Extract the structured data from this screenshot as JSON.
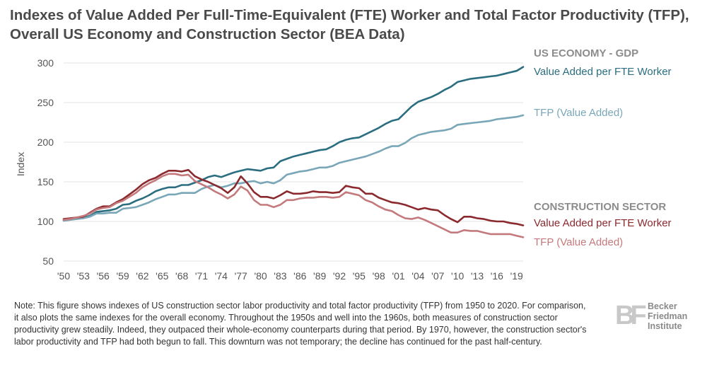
{
  "title": "Indexes of Value Added Per Full-Time-Equivalent (FTE) Worker and Total Factor Productivity (TFP), Overall US Economy and Construction Sector (BEA Data)",
  "note": "Note: This figure shows indexes of US construction sector labor productivity and total factor productivity (TFP) from 1950 to 2020. For comparison, it also plots the same indexes for the overall economy. Throughout the 1950s and well into the 1960s, both measures of construction sector productivity grew steadily. Indeed, they outpaced their whole-economy counterparts during that period. By 1970, however, the construction sector's labor productivity and TFP had both begun to fall. This downturn was not temporary; the decline has continued for the past half-century.",
  "logo": {
    "mark": "BF",
    "lines": [
      "Becker",
      "Friedman",
      "Institute"
    ]
  },
  "legend": {
    "group1": "US ECONOMY - GDP",
    "group2": "CONSTRUCTION SECTOR"
  },
  "colors": {
    "us_va": "#2b6e80",
    "us_tfp": "#7aa7b8",
    "con_va": "#8b2a2e",
    "con_tfp": "#c47a7c",
    "group_label": "#8c8c8c",
    "axis_text": "#555555",
    "grid": "#e3e3e3"
  },
  "chart_data": {
    "type": "line",
    "ylabel": "Index",
    "xlabel": "",
    "ylim": [
      50,
      300
    ],
    "xlim": [
      1950,
      2020
    ],
    "yticks": [
      50,
      100,
      150,
      200,
      250,
      300
    ],
    "xticks": [
      1950,
      1953,
      1956,
      1959,
      1962,
      1965,
      1968,
      1971,
      1974,
      1977,
      1980,
      1983,
      1986,
      1989,
      1992,
      1995,
      1998,
      2001,
      2004,
      2007,
      2010,
      2013,
      2016,
      2019
    ],
    "xtick_labels": [
      "'50",
      "'53",
      "'56",
      "'59",
      "'62",
      "'65",
      "'68",
      "'71",
      "'74",
      "'77",
      "'80",
      "'83",
      "'86",
      "'89",
      "'92",
      "'95",
      "'98",
      "'01",
      "'04",
      "'07",
      "'10",
      "'13",
      "'16",
      "'19"
    ],
    "grid": true,
    "legend_position": "right",
    "series": [
      {
        "name": "Value Added per FTE Worker",
        "group": "US ECONOMY - GDP",
        "color_key": "us_va",
        "x": [
          1950,
          1951,
          1952,
          1953,
          1954,
          1955,
          1956,
          1957,
          1958,
          1959,
          1960,
          1961,
          1962,
          1963,
          1964,
          1965,
          1966,
          1967,
          1968,
          1969,
          1970,
          1971,
          1972,
          1973,
          1974,
          1975,
          1976,
          1977,
          1978,
          1979,
          1980,
          1981,
          1982,
          1983,
          1984,
          1985,
          1986,
          1987,
          1988,
          1989,
          1990,
          1991,
          1992,
          1993,
          1994,
          1995,
          1996,
          1997,
          1998,
          1999,
          2000,
          2001,
          2002,
          2003,
          2004,
          2005,
          2006,
          2007,
          2008,
          2009,
          2010,
          2011,
          2012,
          2013,
          2014,
          2015,
          2016,
          2017,
          2018,
          2019,
          2020
        ],
        "y": [
          101,
          103,
          104,
          105,
          107,
          112,
          113,
          114,
          116,
          121,
          122,
          126,
          129,
          133,
          138,
          141,
          143,
          143,
          146,
          146,
          149,
          152,
          156,
          158,
          156,
          159,
          162,
          164,
          166,
          165,
          164,
          167,
          168,
          176,
          179,
          182,
          184,
          186,
          188,
          190,
          191,
          195,
          200,
          203,
          205,
          206,
          210,
          214,
          218,
          223,
          227,
          229,
          237,
          245,
          251,
          254,
          257,
          261,
          266,
          270,
          276,
          278,
          280,
          281,
          282,
          283,
          284,
          286,
          288,
          290,
          295
        ]
      },
      {
        "name": "TFP (Value Added)",
        "group": "US ECONOMY - GDP",
        "color_key": "us_tfp",
        "x": [
          1950,
          1951,
          1952,
          1953,
          1954,
          1955,
          1956,
          1957,
          1958,
          1959,
          1960,
          1961,
          1962,
          1963,
          1964,
          1965,
          1966,
          1967,
          1968,
          1969,
          1970,
          1971,
          1972,
          1973,
          1974,
          1975,
          1976,
          1977,
          1978,
          1979,
          1980,
          1981,
          1982,
          1983,
          1984,
          1985,
          1986,
          1987,
          1988,
          1989,
          1990,
          1991,
          1992,
          1993,
          1994,
          1995,
          1996,
          1997,
          1998,
          1999,
          2000,
          2001,
          2002,
          2003,
          2004,
          2005,
          2006,
          2007,
          2008,
          2009,
          2010,
          2011,
          2012,
          2013,
          2014,
          2015,
          2016,
          2017,
          2018,
          2019,
          2020
        ],
        "y": [
          101,
          102,
          103,
          104,
          106,
          110,
          110,
          111,
          111,
          116,
          117,
          118,
          121,
          124,
          128,
          131,
          134,
          134,
          136,
          136,
          136,
          141,
          144,
          146,
          143,
          145,
          148,
          148,
          150,
          151,
          148,
          150,
          148,
          152,
          159,
          161,
          163,
          164,
          166,
          168,
          168,
          170,
          174,
          176,
          178,
          180,
          182,
          185,
          188,
          192,
          195,
          195,
          199,
          205,
          209,
          211,
          213,
          214,
          215,
          217,
          222,
          223,
          224,
          225,
          226,
          227,
          229,
          230,
          231,
          232,
          234
        ]
      },
      {
        "name": "Value Added per FTE Worker",
        "group": "CONSTRUCTION SECTOR",
        "color_key": "con_va",
        "x": [
          1950,
          1951,
          1952,
          1953,
          1954,
          1955,
          1956,
          1957,
          1958,
          1959,
          1960,
          1961,
          1962,
          1963,
          1964,
          1965,
          1966,
          1967,
          1968,
          1969,
          1970,
          1971,
          1972,
          1973,
          1974,
          1975,
          1976,
          1977,
          1978,
          1979,
          1980,
          1981,
          1982,
          1983,
          1984,
          1985,
          1986,
          1987,
          1988,
          1989,
          1990,
          1991,
          1992,
          1993,
          1994,
          1995,
          1996,
          1997,
          1998,
          1999,
          2000,
          2001,
          2002,
          2003,
          2004,
          2005,
          2006,
          2007,
          2008,
          2009,
          2010,
          2011,
          2012,
          2013,
          2014,
          2015,
          2016,
          2017,
          2018,
          2019,
          2020
        ],
        "y": [
          103,
          104,
          105,
          106,
          111,
          116,
          119,
          119,
          124,
          128,
          134,
          140,
          147,
          152,
          155,
          160,
          164,
          164,
          163,
          165,
          157,
          153,
          150,
          146,
          142,
          136,
          143,
          157,
          148,
          137,
          131,
          131,
          129,
          133,
          138,
          135,
          135,
          136,
          138,
          137,
          137,
          136,
          137,
          145,
          143,
          142,
          135,
          135,
          130,
          127,
          124,
          123,
          121,
          118,
          115,
          117,
          115,
          114,
          108,
          103,
          99,
          106,
          106,
          104,
          103,
          101,
          100,
          100,
          98,
          97,
          95
        ]
      },
      {
        "name": "TFP (Value Added)",
        "group": "CONSTRUCTION SECTOR",
        "color_key": "con_tfp",
        "x": [
          1950,
          1951,
          1952,
          1953,
          1954,
          1955,
          1956,
          1957,
          1958,
          1959,
          1960,
          1961,
          1962,
          1963,
          1964,
          1965,
          1966,
          1967,
          1968,
          1969,
          1970,
          1971,
          1972,
          1973,
          1974,
          1975,
          1976,
          1977,
          1978,
          1979,
          1980,
          1981,
          1982,
          1983,
          1984,
          1985,
          1986,
          1987,
          1988,
          1989,
          1990,
          1991,
          1992,
          1993,
          1994,
          1995,
          1996,
          1997,
          1998,
          1999,
          2000,
          2001,
          2002,
          2003,
          2004,
          2005,
          2006,
          2007,
          2008,
          2009,
          2010,
          2011,
          2012,
          2013,
          2014,
          2015,
          2016,
          2017,
          2018,
          2019,
          2020
        ],
        "y": [
          102,
          103,
          105,
          107,
          110,
          115,
          117,
          118,
          123,
          126,
          131,
          136,
          143,
          148,
          152,
          157,
          160,
          160,
          158,
          159,
          151,
          147,
          143,
          138,
          134,
          129,
          134,
          144,
          139,
          127,
          121,
          121,
          118,
          121,
          127,
          127,
          129,
          130,
          130,
          131,
          131,
          130,
          131,
          137,
          135,
          133,
          127,
          124,
          119,
          115,
          113,
          108,
          104,
          103,
          105,
          102,
          98,
          94,
          90,
          86,
          86,
          89,
          88,
          88,
          86,
          84,
          84,
          84,
          84,
          82,
          80
        ]
      }
    ]
  }
}
